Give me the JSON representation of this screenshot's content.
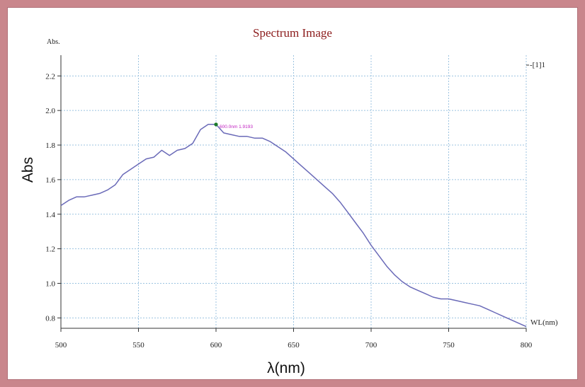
{
  "chart_data": {
    "type": "line",
    "title": "Spectrum Image",
    "ylabel": "Abs",
    "yunit_label": "Abs.",
    "xlabel": "λ(nm)",
    "x_unit_tag": "WL(nm)",
    "legend": "-[1]1",
    "legend_position": "top-right",
    "grid": true,
    "xlim": [
      500,
      800
    ],
    "ylim": [
      0.74,
      2.32
    ],
    "xticks": [
      500,
      550,
      600,
      650,
      700,
      750,
      800
    ],
    "yticks": [
      0.8,
      1.0,
      1.2,
      1.4,
      1.6,
      1.8,
      2.0,
      2.2
    ],
    "annotation": {
      "x": 600,
      "y": 1.9193,
      "text": "600.0nm 1.9193"
    },
    "series": [
      {
        "name": "[1]1",
        "x": [
          500,
          505,
          510,
          515,
          520,
          525,
          530,
          535,
          540,
          545,
          550,
          555,
          560,
          565,
          570,
          575,
          580,
          585,
          590,
          595,
          600,
          605,
          610,
          615,
          620,
          625,
          630,
          635,
          640,
          645,
          650,
          655,
          660,
          665,
          670,
          675,
          680,
          685,
          690,
          695,
          700,
          705,
          710,
          715,
          720,
          725,
          730,
          735,
          740,
          745,
          750,
          755,
          760,
          765,
          770,
          775,
          780,
          785,
          790,
          795,
          800
        ],
        "y": [
          1.45,
          1.48,
          1.5,
          1.5,
          1.51,
          1.52,
          1.54,
          1.57,
          1.63,
          1.66,
          1.69,
          1.72,
          1.73,
          1.77,
          1.74,
          1.77,
          1.78,
          1.81,
          1.89,
          1.92,
          1.92,
          1.87,
          1.86,
          1.85,
          1.85,
          1.84,
          1.84,
          1.82,
          1.79,
          1.76,
          1.72,
          1.68,
          1.64,
          1.6,
          1.56,
          1.52,
          1.47,
          1.41,
          1.35,
          1.29,
          1.22,
          1.16,
          1.1,
          1.05,
          1.01,
          0.98,
          0.96,
          0.94,
          0.92,
          0.91,
          0.91,
          0.9,
          0.89,
          0.88,
          0.87,
          0.85,
          0.83,
          0.81,
          0.79,
          0.77,
          0.75
        ]
      }
    ]
  }
}
